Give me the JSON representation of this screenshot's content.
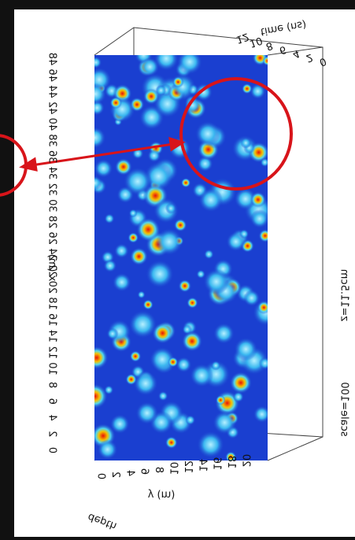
{
  "axes": {
    "x": {
      "label": "x (m)",
      "ticks": [
        "0",
        "2",
        "4",
        "6",
        "8",
        "10",
        "12",
        "14",
        "16",
        "18",
        "20",
        "22",
        "24",
        "26",
        "28",
        "30",
        "32",
        "34",
        "36",
        "38",
        "40",
        "42",
        "44",
        "46",
        "48"
      ]
    },
    "y": {
      "label": "y (m)",
      "ticks": [
        "0",
        "2",
        "4",
        "6",
        "8",
        "10",
        "12",
        "14",
        "16",
        "18",
        "20"
      ]
    },
    "time": {
      "label": "time (ns)",
      "ticks": [
        "0",
        "2",
        "4",
        "6",
        "8",
        "10",
        "12"
      ]
    },
    "depth": {
      "label": "depth"
    }
  },
  "annotations": {
    "slice": "z=11.5cm",
    "scale": "scale=100"
  }
}
